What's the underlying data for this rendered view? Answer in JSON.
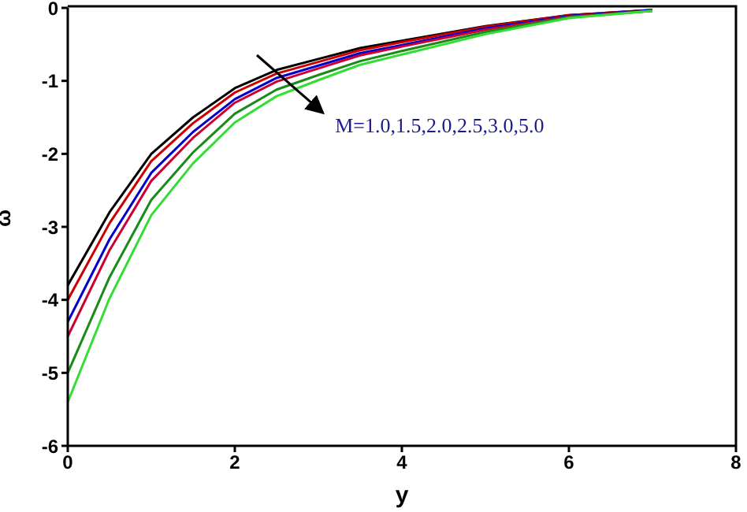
{
  "chart_data": {
    "type": "line",
    "xlabel": "y",
    "ylabel": "ω",
    "x": [
      0,
      0.5,
      1,
      1.5,
      2,
      2.5,
      3,
      3.5,
      4,
      5,
      6,
      7
    ],
    "series": [
      {
        "color": "#000000",
        "values": [
          -3.8,
          -2.8,
          -2.0,
          -1.5,
          -1.1,
          -0.85,
          -0.7,
          -0.55,
          -0.45,
          -0.25,
          -0.1,
          -0.03
        ]
      },
      {
        "color": "#cc0000",
        "values": [
          -4.0,
          -2.95,
          -2.1,
          -1.58,
          -1.16,
          -0.9,
          -0.74,
          -0.58,
          -0.47,
          -0.26,
          -0.1,
          -0.03
        ]
      },
      {
        "color": "#0000cc",
        "values": [
          -4.3,
          -3.17,
          -2.26,
          -1.7,
          -1.25,
          -0.96,
          -0.79,
          -0.62,
          -0.51,
          -0.28,
          -0.11,
          -0.03
        ]
      },
      {
        "color": "#cc0033",
        "values": [
          -4.5,
          -3.32,
          -2.37,
          -1.78,
          -1.3,
          -1.01,
          -0.83,
          -0.65,
          -0.53,
          -0.3,
          -0.12,
          -0.04
        ]
      },
      {
        "color": "#1a8a1a",
        "values": [
          -5.0,
          -3.69,
          -2.63,
          -1.98,
          -1.45,
          -1.12,
          -0.92,
          -0.73,
          -0.59,
          -0.33,
          -0.13,
          -0.04
        ]
      },
      {
        "color": "#33dd33",
        "values": [
          -5.4,
          -3.98,
          -2.84,
          -2.13,
          -1.57,
          -1.21,
          -0.99,
          -0.78,
          -0.64,
          -0.36,
          -0.14,
          -0.04
        ]
      }
    ],
    "xlim": [
      0,
      8
    ],
    "xticks": [
      0,
      2,
      4,
      6,
      8
    ],
    "ylim": [
      -6,
      0
    ],
    "yticks": [
      -6,
      -5,
      -4,
      -3,
      -2,
      -1,
      0
    ],
    "grid": false,
    "legend": false,
    "marker": "none",
    "line_style": "solid",
    "annotations": [
      "M=1.0,1.5,2.0,2.5,3.0,5.0"
    ]
  }
}
